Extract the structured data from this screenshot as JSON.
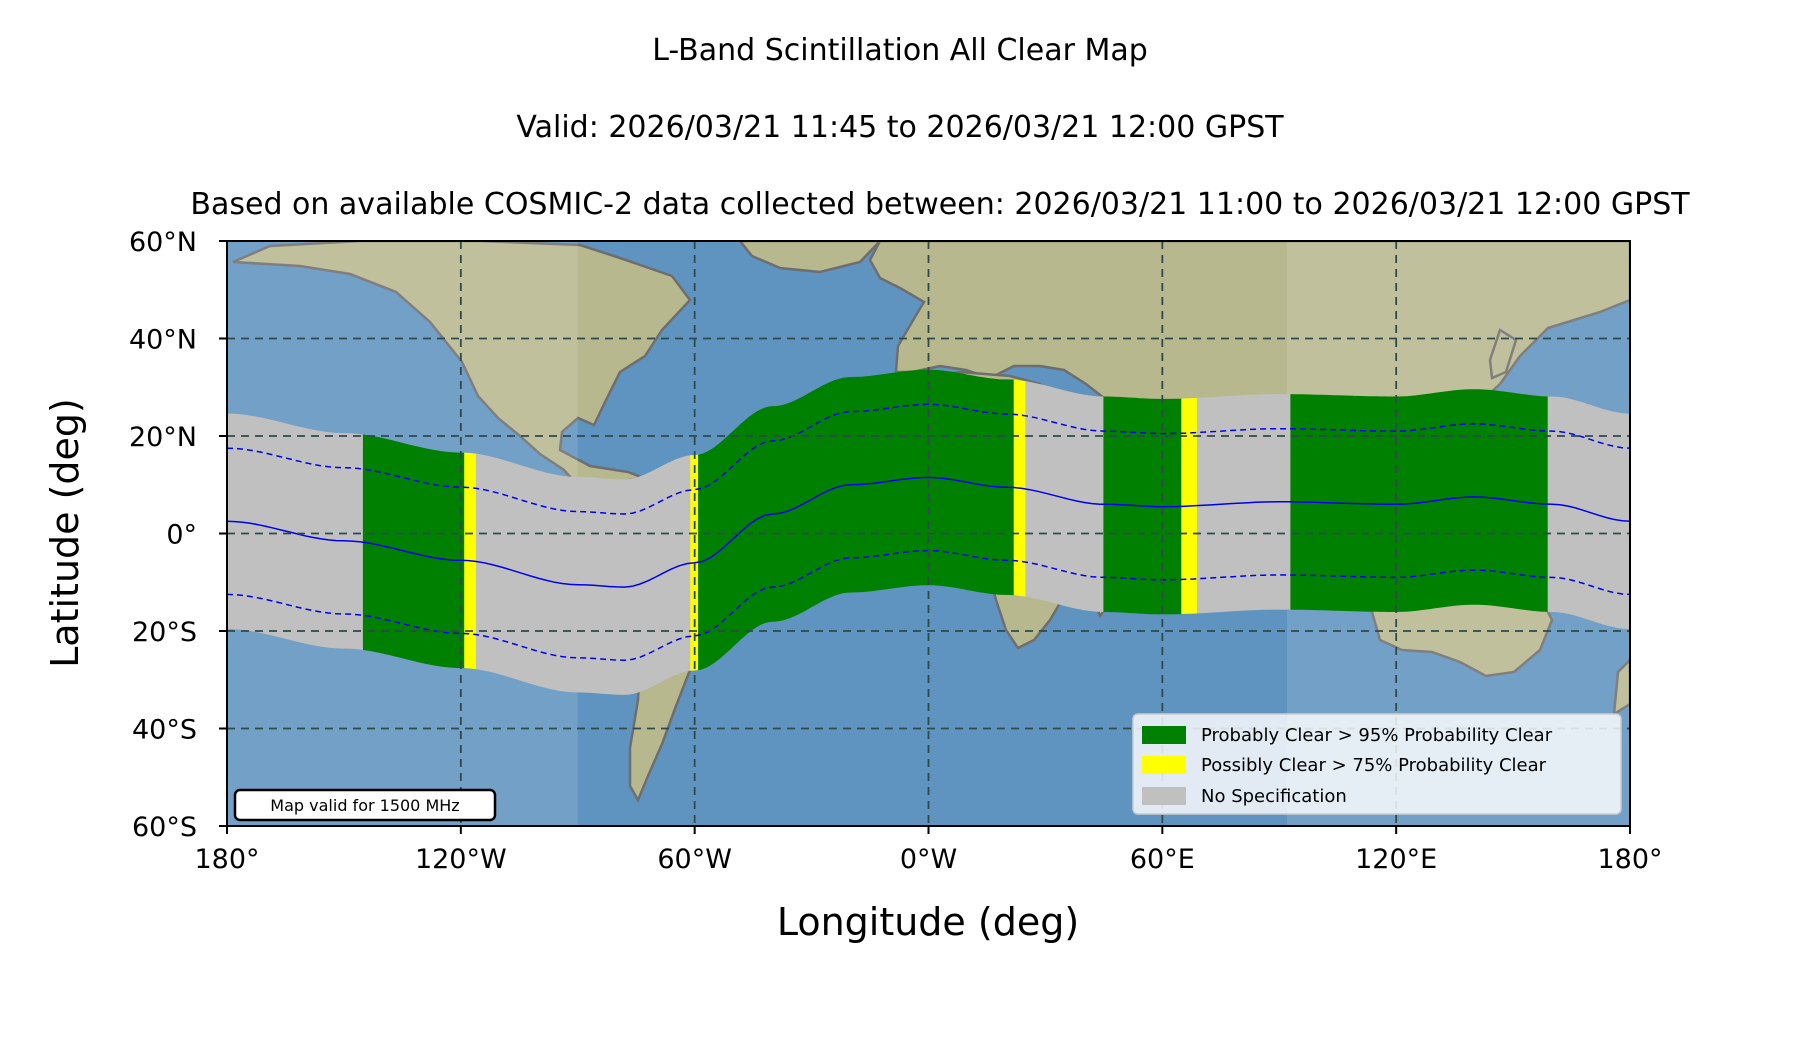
{
  "titles": {
    "line1": "L-Band Scintillation All Clear Map",
    "line2": "Valid: 2026/03/21 11:45 to 2026/03/21 12:00 GPST",
    "line3": "Based on available COSMIC-2 data collected between: 2026/03/21 11:00 to 2026/03/21 12:00 GPST"
  },
  "axes": {
    "xlabel": "Longitude (deg)",
    "ylabel": "Latitude (deg)",
    "x_ticks": [
      {
        "value": -180,
        "label": "180°"
      },
      {
        "value": -120,
        "label": "120°W"
      },
      {
        "value": -60,
        "label": "60°W"
      },
      {
        "value": 0,
        "label": "0°W"
      },
      {
        "value": 60,
        "label": "60°E"
      },
      {
        "value": 120,
        "label": "120°E"
      },
      {
        "value": 180,
        "label": "180°"
      }
    ],
    "y_ticks": [
      {
        "value": 60,
        "label": "60°N"
      },
      {
        "value": 40,
        "label": "40°N"
      },
      {
        "value": 20,
        "label": "20°N"
      },
      {
        "value": 0,
        "label": "0°"
      },
      {
        "value": -20,
        "label": "20°S"
      },
      {
        "value": -40,
        "label": "40°S"
      },
      {
        "value": -60,
        "label": "60°S"
      }
    ],
    "x_range": [
      -180,
      180
    ],
    "y_range": [
      -60,
      60
    ],
    "grid": true
  },
  "legend": {
    "placement": "lower-right",
    "items": [
      {
        "label": "Probably Clear > 95% Probability Clear",
        "color": "#008000"
      },
      {
        "label": "Possibly Clear > 75% Probability Clear",
        "color": "#ffff00"
      },
      {
        "label": "No Specification",
        "color": "#c0c0c0"
      }
    ]
  },
  "note": "Map valid for 1500 MHz",
  "colors": {
    "probably_clear": "#008000",
    "possibly_clear": "#ffff00",
    "no_spec": "#c0c0c0",
    "magnetic_equator": "#0000ee",
    "ocean": "#5f93c0",
    "land": "#b8b88f",
    "grid": "#2e4a4a"
  },
  "map_data": {
    "band_half_width_deg": 22,
    "equator_line": [
      [
        -180,
        2.5
      ],
      [
        -150,
        -1.5
      ],
      [
        -120,
        -5.5
      ],
      [
        -90,
        -10.5
      ],
      [
        -78,
        -11
      ],
      [
        -60,
        -6
      ],
      [
        -40,
        4
      ],
      [
        -20,
        10
      ],
      [
        0,
        11.5
      ],
      [
        20,
        9.5
      ],
      [
        45,
        6
      ],
      [
        60,
        5.5
      ],
      [
        90,
        6.5
      ],
      [
        120,
        6
      ],
      [
        140,
        7.5
      ],
      [
        160,
        6
      ],
      [
        180,
        2.5
      ]
    ],
    "dashed_offsets_deg": [
      15,
      -15
    ],
    "segments": [
      {
        "from": -180,
        "to": -145,
        "status": "no_spec"
      },
      {
        "from": -145,
        "to": -119,
        "status": "probably_clear"
      },
      {
        "from": -119,
        "to": -116,
        "status": "possibly_clear"
      },
      {
        "from": -116,
        "to": -61,
        "status": "no_spec"
      },
      {
        "from": -61,
        "to": -59,
        "status": "possibly_clear"
      },
      {
        "from": -59,
        "to": 22,
        "status": "probably_clear"
      },
      {
        "from": 22,
        "to": 25,
        "status": "possibly_clear"
      },
      {
        "from": 25,
        "to": 45,
        "status": "no_spec"
      },
      {
        "from": 45,
        "to": 65,
        "status": "probably_clear"
      },
      {
        "from": 65,
        "to": 69,
        "status": "possibly_clear"
      },
      {
        "from": 69,
        "to": 93,
        "status": "no_spec"
      },
      {
        "from": 93,
        "to": 159,
        "status": "probably_clear"
      },
      {
        "from": 159,
        "to": 180,
        "status": "no_spec"
      }
    ],
    "daylight_shading": [
      {
        "from": -180,
        "to": -90,
        "alpha": 0.12
      },
      {
        "from": 92,
        "to": 180,
        "alpha": 0.12
      }
    ]
  }
}
